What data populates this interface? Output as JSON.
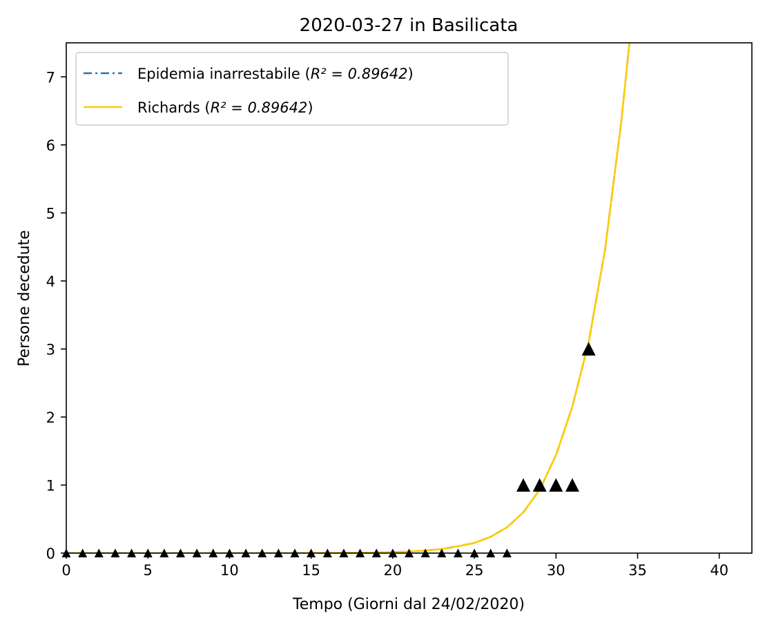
{
  "chart_data": {
    "type": "line",
    "title": "2020-03-27 in Basilicata",
    "xlabel": "Tempo (Giorni dal 24/02/2020)",
    "ylabel": "Persone decedute",
    "xlim": [
      0,
      42
    ],
    "ylim": [
      0,
      7.5
    ],
    "xticks": [
      0,
      5,
      10,
      15,
      20,
      25,
      30,
      35,
      40
    ],
    "yticks": [
      0,
      1,
      2,
      3,
      4,
      5,
      6,
      7
    ],
    "grid": false,
    "legend_position": "top-left",
    "legend": [
      {
        "label_prefix": "Epidemia inarrestabile (",
        "r2_label": "R² = 0.89642",
        "label_suffix": ")",
        "style": "dash-dot",
        "color": "#1f77b4"
      },
      {
        "label_prefix": "Richards (",
        "r2_label": "R² = 0.89642",
        "label_suffix": ")",
        "style": "solid",
        "color": "#ffcc00"
      }
    ],
    "observed": {
      "marker": "triangle",
      "color": "#000000",
      "x": [
        0,
        1,
        2,
        3,
        4,
        5,
        6,
        7,
        8,
        9,
        10,
        11,
        12,
        13,
        14,
        15,
        16,
        17,
        18,
        19,
        20,
        21,
        22,
        23,
        24,
        25,
        26,
        27,
        28,
        29,
        30,
        31,
        32
      ],
      "y": [
        0,
        0,
        0,
        0,
        0,
        0,
        0,
        0,
        0,
        0,
        0,
        0,
        0,
        0,
        0,
        0,
        0,
        0,
        0,
        0,
        0,
        0,
        0,
        0,
        0,
        0,
        0,
        0,
        1,
        1,
        1,
        1,
        3
      ]
    },
    "fit": {
      "x": [
        0,
        2,
        4,
        6,
        8,
        10,
        12,
        14,
        16,
        18,
        19,
        20,
        21,
        22,
        23,
        24,
        25,
        26,
        27,
        28,
        29,
        30,
        31,
        32,
        33,
        34,
        34.5
      ],
      "y": [
        0,
        0,
        0,
        0,
        0,
        0,
        0,
        0,
        0.002,
        0.005,
        0.008,
        0.014,
        0.023,
        0.038,
        0.06,
        0.1,
        0.15,
        0.24,
        0.38,
        0.6,
        0.93,
        1.44,
        2.15,
        3.1,
        4.45,
        6.35,
        7.5
      ]
    }
  }
}
